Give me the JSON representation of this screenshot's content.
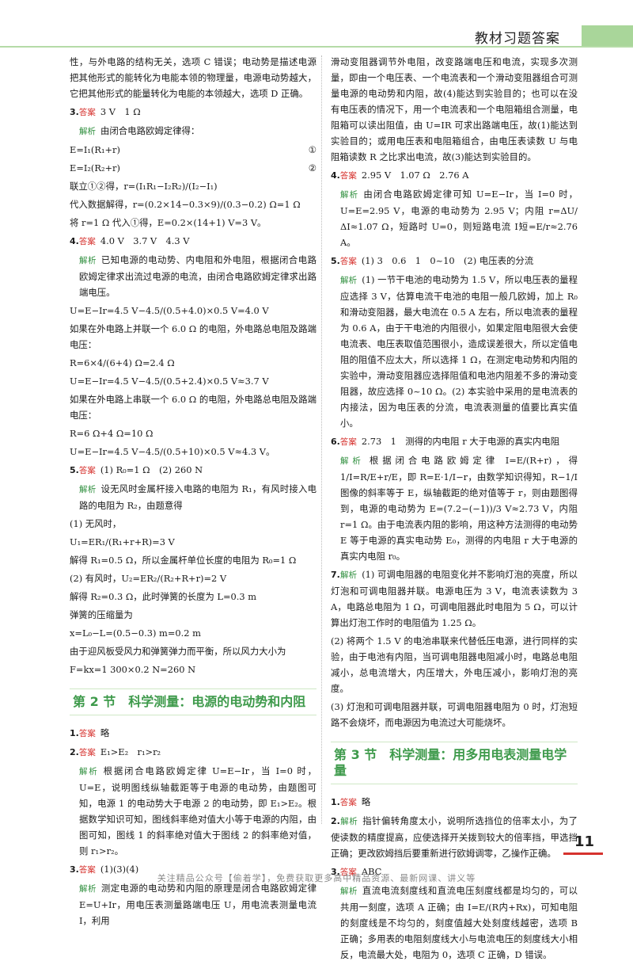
{
  "header": {
    "title": "教材习题答案"
  },
  "labels": {
    "answer": "答案",
    "explain": "解析"
  },
  "left": {
    "intro": "性，与外电路的结构无关，选项 C 错误；电动势是描述电源把其他形式的能转化为电能本领的物理量，电源电动势越大，它把其他形式的能量转化为电能的本领越大，选项 D 正确。",
    "q3": {
      "num": "3.",
      "answer": "3 V　1 Ω",
      "lines": [
        "由闭合电路欧姆定律得：",
        "E=I₁(R₁+r)",
        "E=I₂(R₂+r)",
        "联立①②得，r=(I₁R₁−I₂R₂)/(I₂−I₁)",
        "代入数据解得，r=(0.2×14−0.3×9)/(0.3−0.2) Ω=1 Ω",
        "将 r=1 Ω 代入①得，E=0.2×(14+1) V=3 V。"
      ],
      "eq_marks": [
        "①",
        "②"
      ]
    },
    "q4": {
      "num": "4.",
      "answer": "4.0 V　3.7 V　4.3 V",
      "lines": [
        "已知电源的电动势、内电阻和外电阻，根据闭合电路欧姆定律求出流过电源的电流，由闭合电路欧姆定律求出路端电压。",
        "U=E−Ir=4.5 V−4.5/(0.5+4.0)×0.5 V=4.0 V",
        "如果在外电路上并联一个 6.0 Ω 的电阻，外电路总电阻及路端电压：",
        "R=6×4/(6+4) Ω=2.4 Ω",
        "U=E−Ir=4.5 V−4.5/(0.5+2.4)×0.5 V≈3.7 V",
        "如果在外电路上串联一个 6.0 Ω 的电阻，外电路总电阻及路端电压：",
        "R=6 Ω+4 Ω=10 Ω",
        "U=E−Ir=4.5 V−4.5/(0.5+10)×0.5 V≈4.3 V。"
      ]
    },
    "q5": {
      "num": "5.",
      "answer": "(1) R₀=1 Ω　(2) 260 N",
      "lines": [
        "设无风时金属杆接入电路的电阻为 R₁，有风时接入电路的电阻为 R₂，由题意得",
        "(1) 无风时，",
        "U₁=ER₁/(R₁+r+R)=3 V",
        "解得 R₁=0.5 Ω，所以金属杆单位长度的电阻为 R₀=1 Ω",
        "(2) 有风时，U₂=ER₂/(R₂+R+r)=2 V",
        "解得 R₂=0.3 Ω，此时弹簧的长度为 L=0.3 m",
        "弹簧的压缩量为",
        "x=L₀−L=(0.5−0.3) m=0.2 m",
        "由于迎风板受风力和弹簧弹力而平衡，所以风力大小为",
        "F=kx=1 300×0.2 N=260 N"
      ]
    },
    "section2_title": "第 2 节　科学测量：电源的电动势和内阻",
    "s2q1": {
      "num": "1.",
      "answer": "略"
    },
    "s2q2": {
      "num": "2.",
      "answer": "E₁>E₂　r₁>r₂",
      "text": "根据闭合电路欧姆定律 U=E−Ir，当 I=0 时，U=E，说明图线纵轴截距等于电源的电动势，由题图可知，电源 1 的电动势大于电源 2 的电动势，即 E₁>E₂。根据数学知识可知，图线斜率绝对值大小等于电源的内阻，由图可知，图线 1 的斜率绝对值大于图线 2 的斜率绝对值，则 r₁>r₂。"
    },
    "s2q3": {
      "num": "3.",
      "answer": "(1)(3)(4)",
      "text": "测定电源的电动势和内阻的原理是闭合电路欧姆定律 E=U+Ir，用电压表测量路端电压 U，用电流表测量电流 I，利用"
    }
  },
  "right": {
    "cont": "滑动变阻器调节外电阻，改变路端电压和电流，实现多次测量，即由一个电压表、一个电流表和一个滑动变阻器组合可测量电源的电动势和内阻，故(4)能达到实验目的；也可以在没有电压表的情况下，用一个电流表和一个电阻箱组合测量，电阻箱可以读出阻值，由 U=IR 可求出路端电压，故(1)能达到实验目的；或用电压表和电阻箱组合，由电压表读数 U 与电阻箱读数 R 之比求出电流，故(3)能达到实验目的。",
    "q4": {
      "num": "4.",
      "answer": "2.95 V　1.07 Ω　2.76 A",
      "text": "由闭合电路欧姆定律可知 U=E−Ir，当 I=0 时，U=E=2.95 V，电源的电动势为 2.95 V；内阻 r=ΔU/ΔI≈1.07 Ω，短路时 U=0，则短路电流 I短=E/r≈2.76 A。"
    },
    "q5": {
      "num": "5.",
      "answer": "(1) 3　0.6　1　0~10　(2) 电压表的分流",
      "text": "(1) 一节干电池的电动势为 1.5 V，所以电压表的量程应选择 3 V，估算电流干电池的电阻一般几欧姆，加上 R₀ 和滑动变阻器，最大电流在 0.5 A 左右，所以电流表的量程为 0.6 A，由于干电池的内阻很小，如果定阻电阻很大会使电流表、电压表取值范围很小，造成误差很大，所以定值电阻的阻值不应太大，所以选择 1 Ω，在测定电动势和内阻的实验中，滑动变阻器应选择阻值和电池内阻差不多的滑动变阻器，故应选择 0~10 Ω。(2) 本实验中采用的是电流表的内接法，因为电压表的分流，电流表测量的值要比真实值小。"
    },
    "q6": {
      "num": "6.",
      "answer": "2.73　1　测得的内电阻 r 大于电源的真实内电阻",
      "text": "根据闭合电路欧姆定律 I=E/(R+r)，得 1/I=R/E+r/E，即 R=E·1/I−r，由数学知识得知，R−1/I 图像的斜率等于 E，纵轴截距的绝对值等于 r，则由题图得到，电源的电动势为 E=(7.2−(−1))/3 V≈2.73 V，内阻 r=1 Ω。由于电流表内阻的影响，用这种方法测得的电动势 E 等于电源的真实电动势 E₀，测得的内电阻 r 大于电源的真实内电阻 r₀。"
    },
    "q7": {
      "num": "7.",
      "lines": [
        "(1) 可调电阻器的电阻变化并不影响灯泡的亮度，所以灯泡和可调电阻器并联。电源电压为 3 V，电流表读数为 3 A，电路总电阻为 1 Ω，可调电阻器此时电阻为 5 Ω，可以计算出灯泡工作时的电阻值为 1.25 Ω。",
        "(2) 将两个 1.5 V 的电池串联来代替低压电源，进行同样的实验，由于电池有内阻，当可调电阻器电阻减小时，电路总电阻减小，总电流增大，内压增大，外电压减小，影响灯泡的亮度。",
        "(3) 灯泡和可调电阻器并联，可调电阻器电阻为 0 时，灯泡短路不会烧坏，而电源因为电流过大可能烧坏。"
      ]
    },
    "section3_title": "第 3 节　科学测量：用多用电表测量电学量",
    "s3q1": {
      "num": "1.",
      "answer": "略"
    },
    "s3q2": {
      "num": "2.",
      "text": "指针偏转角度太小，说明所选挡位的倍率太小，为了使读数的精度提高，应使选择开关拨到较大的倍率挡，甲选挡正确；更改欧姆挡后要重新进行欧姆调零，乙操作正确。"
    },
    "s3q3": {
      "num": "3.",
      "answer": "ABC",
      "text": "直流电流刻度线和直流电压刻度线都是均匀的，可以共用一刻度，选项 A 正确；由 I=E/(R内+Rx)，可知电阻的刻度线是不均匀的，刻度值越大处刻度线越密，选项 B 正确；多用表的电阻刻度线大小与电流电压的刻度线大小相反，电流最大处，电阻为 0，选项 C 正确，D 错误。"
    }
  },
  "page_number": "11",
  "footer": "关注精品公众号【偷着学】，免费获取更多高中精品资源、最新网课、讲义等"
}
